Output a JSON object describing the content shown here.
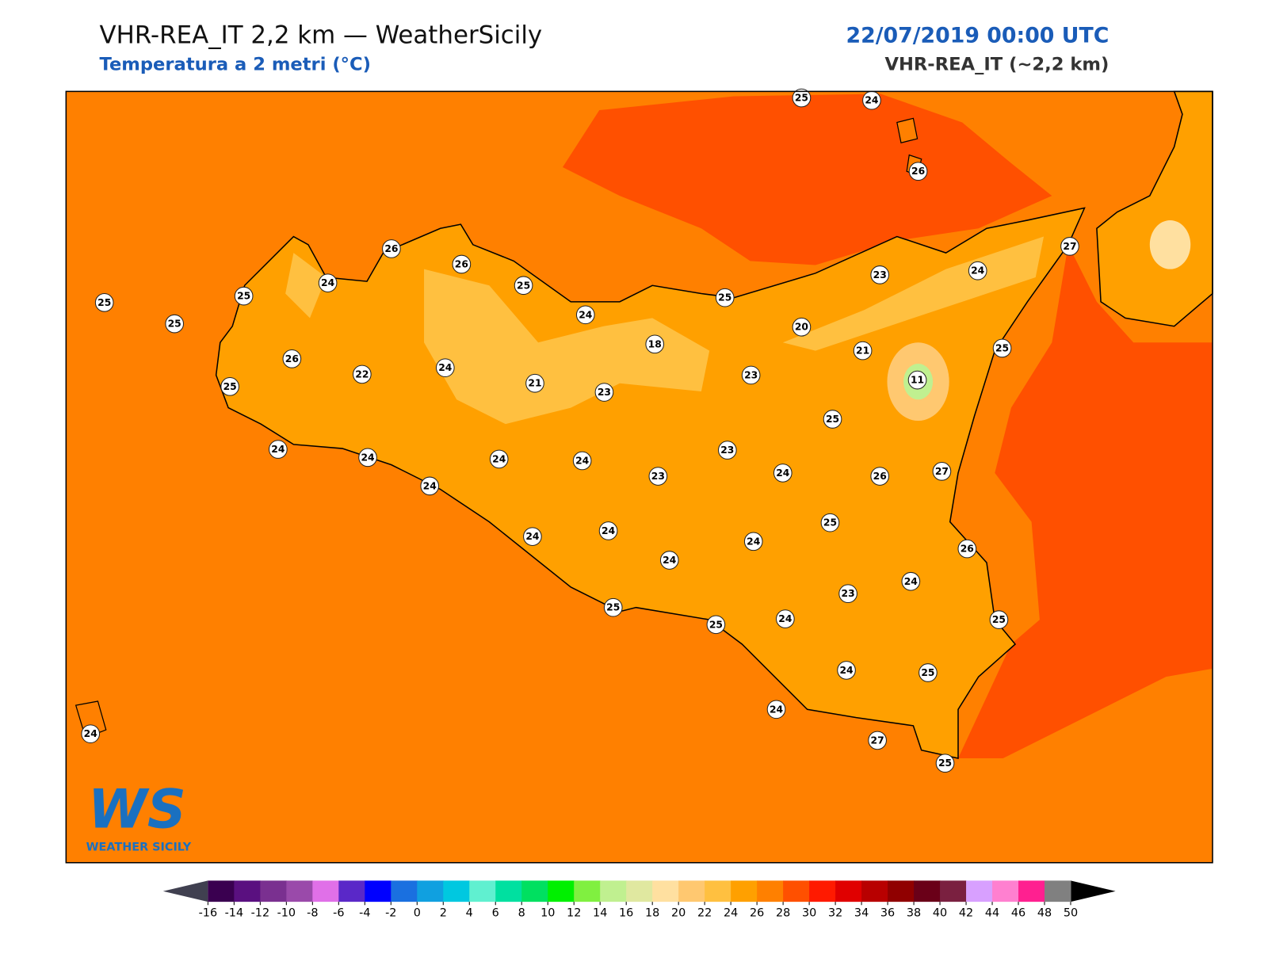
{
  "header": {
    "title": "VHR-REA_IT 2,2 km — WeatherSicily",
    "subtitle": "Temperatura a 2 metri (°C)",
    "date": "22/07/2019 00:00 UTC",
    "model": "VHR-REA_IT (~2,2 km)"
  },
  "logo": {
    "mark": "WS",
    "name": "WEATHER SICILY"
  },
  "station_values": [
    25,
    24,
    26,
    27,
    24,
    23,
    26,
    26,
    25,
    24,
    25,
    25,
    25,
    24,
    25,
    20,
    18,
    21,
    25,
    26,
    22,
    24,
    21,
    23,
    23,
    11,
    25,
    25,
    24,
    24,
    24,
    24,
    23,
    23,
    24,
    26,
    27,
    24,
    25,
    24,
    24,
    24,
    24,
    26,
    24,
    23,
    25,
    25,
    24,
    25,
    24,
    25,
    24,
    27,
    25,
    24
  ],
  "colorbar": {
    "ticks": [
      -16,
      -14,
      -12,
      -10,
      -8,
      -6,
      -4,
      -2,
      0,
      2,
      4,
      6,
      8,
      10,
      12,
      14,
      16,
      18,
      20,
      22,
      24,
      26,
      28,
      30,
      32,
      34,
      36,
      38,
      40,
      42,
      44,
      46,
      48,
      50
    ],
    "colors": [
      "#3a0050",
      "#5a1080",
      "#7a3090",
      "#9a4aaa",
      "#e070e8",
      "#5a28c8",
      "#0000ff",
      "#1a70e0",
      "#10a0e0",
      "#00c8e0",
      "#60f0d0",
      "#00e0a0",
      "#00e060",
      "#00f000",
      "#80f040",
      "#c0f090",
      "#e0e8a0",
      "#ffe0a0",
      "#ffc870",
      "#ffc040",
      "#ffa000",
      "#ff8000",
      "#ff5000",
      "#ff1a00",
      "#e00000",
      "#b80000",
      "#900000",
      "#6a0018",
      "#7a2040",
      "#d8a0ff",
      "#ff80d0",
      "#ff2090",
      "#808080"
    ],
    "under": "#404050",
    "over": "#000000"
  }
}
